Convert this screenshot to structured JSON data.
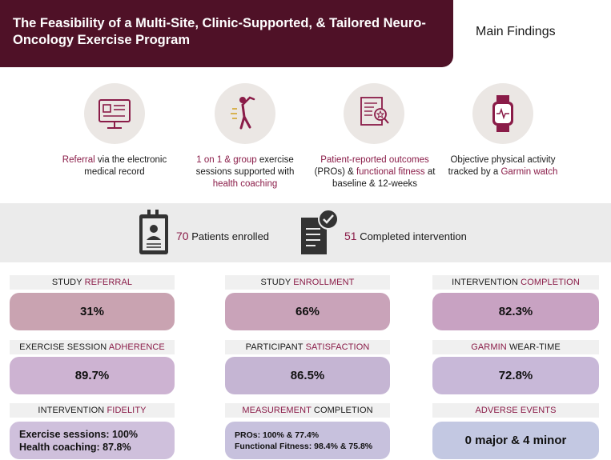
{
  "header": {
    "title": "The Feasibility of a Multi-Site, Clinic-Supported, & Tailored Neuro-Oncology Exercise Program",
    "subtitle": "Main Findings"
  },
  "features": [
    {
      "icon": "computer-monitor-icon",
      "accent": "Referral",
      "text": " via the electronic medical record"
    },
    {
      "icon": "exercise-person-icon",
      "accent1": "1 on 1 & group",
      "text1": " exercise sessions supported with ",
      "accent2": "health coaching"
    },
    {
      "icon": "document-checklist-icon",
      "accent1": "Patient-reported outcomes",
      "text1": " (PROs) & ",
      "accent2": "functional fitness",
      "text2": " at baseline & 12-weeks"
    },
    {
      "icon": "smartwatch-icon",
      "text1": "Objective physical activity tracked by a ",
      "accent": "Garmin watch"
    }
  ],
  "stats": {
    "enrolled_num": "70",
    "enrolled_text": " Patients enrolled",
    "completed_num": "51",
    "completed_text": " Completed intervention"
  },
  "metrics": [
    {
      "label_plain": "STUDY ",
      "label_accent": "REFERRAL",
      "value": "31%",
      "color": "#c9a3b1"
    },
    {
      "label_plain": "STUDY ",
      "label_accent": "ENROLLMENT",
      "value": "66%",
      "color": "#c9a3b9"
    },
    {
      "label_plain": "INTERVENTION ",
      "label_accent": "COMPLETION",
      "value": "82.3%",
      "color": "#c8a2c2"
    },
    {
      "label_plain": "EXERCISE SESSION ",
      "label_accent": "ADHERENCE",
      "value": "89.7%",
      "color": "#cdb3d2"
    },
    {
      "label_plain": "PARTICIPANT ",
      "label_accent": "SATISFACTION",
      "value": "86.5%",
      "color": "#c5b5d3"
    },
    {
      "label_accent": "GARMIN",
      "label_plain": " WEAR-TIME",
      "value": "72.8%",
      "color": "#c8b8d8"
    },
    {
      "label_plain": "INTERVENTION ",
      "label_accent": "FIDELITY",
      "line1": "Exercise sessions: 100%",
      "line2": "Health coaching: 87.8%",
      "color": "#cfc0dc"
    },
    {
      "label_accent": "MEASUREMENT",
      "label_plain": " COMPLETION",
      "line1": "PROs: 100% & 77.4%",
      "line2": "Functional Fitness: 98.4% & 75.8%",
      "color": "#c7c1dd"
    },
    {
      "label_accent": "ADVERSE EVENTS",
      "value": "0 major & 4 minor",
      "color": "#c3c8e2"
    }
  ]
}
